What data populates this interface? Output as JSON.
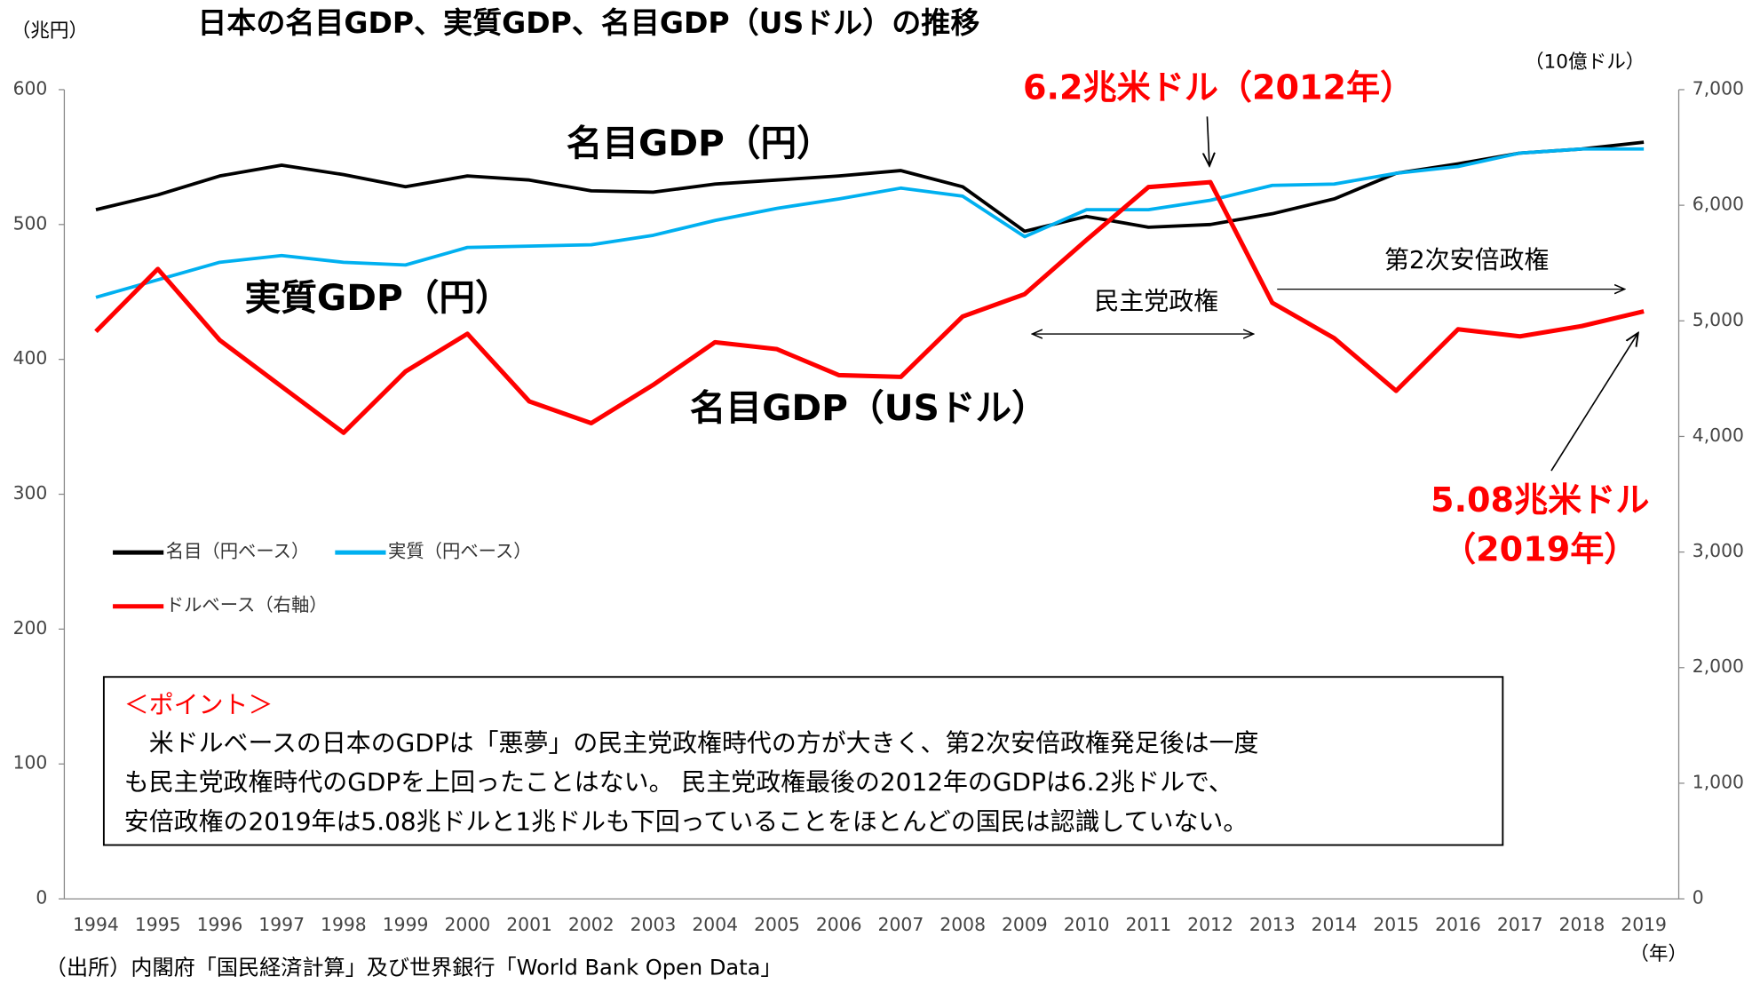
{
  "chart_data": {
    "type": "line",
    "title": "日本の名目GDP、実質GDP、名目GDP（USドル）の推移",
    "y_label": "（兆円）",
    "y2_label": "（10億ドル）",
    "x_unit": "（年）",
    "categories": [
      "1994",
      "1995",
      "1996",
      "1997",
      "1998",
      "1999",
      "2000",
      "2001",
      "2002",
      "2003",
      "2004",
      "2005",
      "2006",
      "2007",
      "2008",
      "2009",
      "2010",
      "2011",
      "2012",
      "2013",
      "2014",
      "2015",
      "2016",
      "2017",
      "2018",
      "2019"
    ],
    "ylim": [
      0,
      600
    ],
    "yticks": [
      0,
      100,
      200,
      300,
      400,
      500,
      600
    ],
    "y2lim": [
      0,
      7000
    ],
    "y2ticks": [
      0,
      {
        "value": 1000,
        "label": "1,000"
      },
      {
        "value": 2000,
        "label": "2,000"
      },
      {
        "value": 3000,
        "label": "3,000"
      },
      {
        "value": 4000,
        "label": "4,000"
      },
      {
        "value": 5000,
        "label": "5,000"
      },
      {
        "value": 6000,
        "label": "6,000"
      },
      {
        "value": 7000,
        "label": "7,000"
      }
    ],
    "series": [
      {
        "name": "名目（円ベース）",
        "color": "#000000",
        "values": [
          511,
          522,
          536,
          544,
          537,
          528,
          536,
          533,
          525,
          524,
          530,
          533,
          536,
          540,
          528,
          495,
          506,
          498,
          500,
          508,
          519,
          538,
          545,
          553,
          556,
          561
        ]
      },
      {
        "name": "実質（円ベース）",
        "color": "#00b0f0",
        "values": [
          446,
          459,
          472,
          477,
          472,
          470,
          483,
          484,
          485,
          492,
          503,
          512,
          519,
          527,
          521,
          491,
          511,
          511,
          518,
          529,
          530,
          538,
          543,
          553,
          556,
          556
        ]
      },
      {
        "name": "ドルベース（右軸）",
        "color": "#ff0000",
        "axis": "y2",
        "values": [
          4908,
          5449,
          4833,
          4432,
          4032,
          4562,
          4888,
          4303,
          4115,
          4446,
          4815,
          4755,
          4530,
          4515,
          5038,
          5231,
          5700,
          6157,
          6200,
          5156,
          4850,
          4395,
          4927,
          4866,
          4955,
          5082
        ]
      }
    ],
    "annotations": [
      "名目GDP（円）",
      "実質GDP（円）",
      "名目GDP（USドル）",
      "6.2兆米ドル（2012年）",
      "5.08兆米ドル",
      "（2019年）",
      "民主党政権",
      "第2次安倍政権"
    ],
    "note": {
      "title": "＜ポイント＞",
      "lines": [
        "　米ドルベースの日本のGDPは「悪夢」の民主党政権時代の方が大きく、第2次安倍政権発足後は一度",
        "も民主党政権時代のGDPを上回ったことはない。 民主党政権最後の2012年のGDPは6.2兆ドルで、",
        "安倍政権の2019年は5.08兆ドルと1兆ドルも下回っていることをほとんどの国民は認識していない。"
      ]
    },
    "source": "（出所）内閣府「国民経済計算」及び世界銀行「World Bank Open Data」"
  }
}
